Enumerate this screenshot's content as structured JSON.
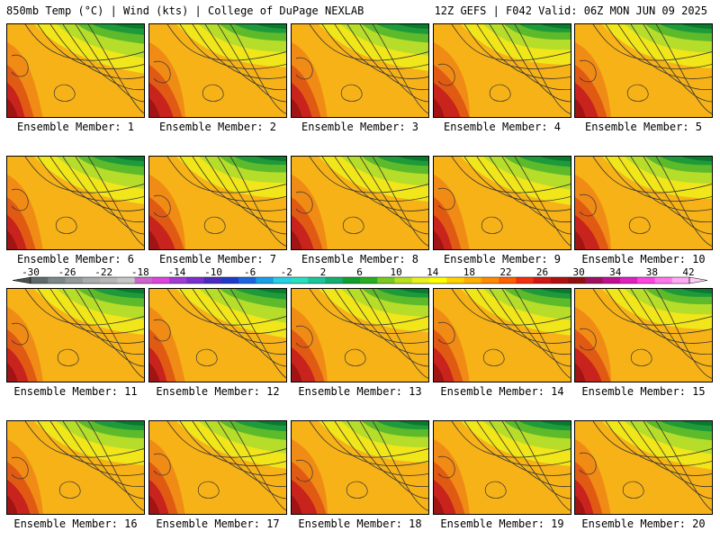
{
  "header": {
    "left": "850mb Temp (°C) | Wind (kts) | College of DuPage NEXLAB",
    "right": "12Z GEFS | F042 Valid: 06Z MON JUN 09 2025"
  },
  "members": [
    "Ensemble Member: 1",
    "Ensemble Member: 2",
    "Ensemble Member: 3",
    "Ensemble Member: 4",
    "Ensemble Member: 5",
    "Ensemble Member: 6",
    "Ensemble Member: 7",
    "Ensemble Member: 8",
    "Ensemble Member: 9",
    "Ensemble Member: 10",
    "Ensemble Member: 11",
    "Ensemble Member: 12",
    "Ensemble Member: 13",
    "Ensemble Member: 14",
    "Ensemble Member: 15",
    "Ensemble Member: 16",
    "Ensemble Member: 17",
    "Ensemble Member: 18",
    "Ensemble Member: 19",
    "Ensemble Member: 20"
  ],
  "colorbar": {
    "labels": [
      "-30",
      "-26",
      "-22",
      "-18",
      "-14",
      "-10",
      "-6",
      "-2",
      "2",
      "6",
      "10",
      "14",
      "18",
      "22",
      "26",
      "30",
      "34",
      "38",
      "42"
    ],
    "colors": [
      "#5f6a6a",
      "#7d8787",
      "#939a9a",
      "#a8adad",
      "#b7b7b7",
      "#c7c7c7",
      "#cc66cc",
      "#dd44dd",
      "#a33ad6",
      "#7a2fcf",
      "#4b2bbf",
      "#1f3acb",
      "#1a66e0",
      "#16a0e8",
      "#25d0e8",
      "#26e0c0",
      "#1ac79a",
      "#12b070",
      "#10a030",
      "#28b020",
      "#7acb20",
      "#b8e020",
      "#e8f020",
      "#ffff00",
      "#ffd200",
      "#ffb000",
      "#ff8c00",
      "#ff6000",
      "#f03010",
      "#d01818",
      "#b01010",
      "#901010",
      "#a01060",
      "#c01090",
      "#e020c0",
      "#ff44e0",
      "#ff77ee",
      "#ffaaf4"
    ]
  },
  "map_colors": {
    "green_dark": "#0a7a2e",
    "green": "#1f9a3a",
    "green_light": "#5dbb2b",
    "yellow_green": "#b6dd2a",
    "yellow": "#f0e61a",
    "orange_light": "#f7b217",
    "orange": "#f08c16",
    "red_orange": "#e05a14",
    "red": "#c8231c",
    "dark_red": "#a01414"
  }
}
